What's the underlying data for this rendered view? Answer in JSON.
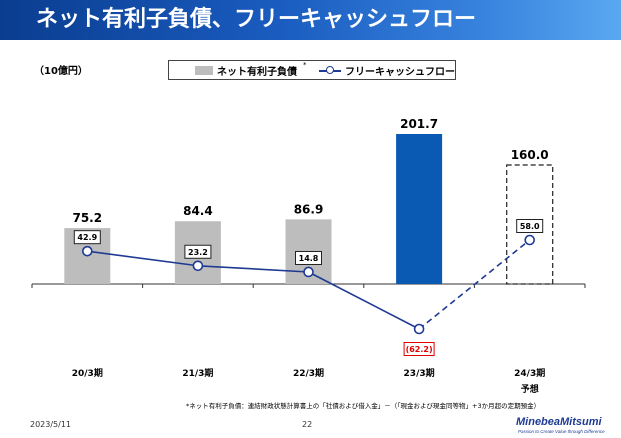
{
  "title": "ネット有利子負債、フリーキャッシュフロー",
  "unit": "（10億円）",
  "legend": {
    "bar": "ネット有利子負債",
    "bar_mark": "*",
    "line": "フリーキャッシュフロー"
  },
  "chart_data": {
    "type": "bar",
    "categories": [
      "20/3期",
      "21/3期",
      "22/3期",
      "23/3期",
      "24/3期"
    ],
    "forecast_label": "予想",
    "series": [
      {
        "name": "ネット有利子負債",
        "kind": "bar",
        "values": [
          75.2,
          84.4,
          86.9,
          201.7,
          160.0
        ],
        "labels": [
          "75.2",
          "84.4",
          "86.9",
          "201.7",
          "160.0"
        ],
        "colors": [
          "#bdbdbd",
          "#bdbdbd",
          "#bdbdbd",
          "#0a5ab4",
          "none"
        ],
        "forecast_index": 4
      },
      {
        "name": "フリーキャッシュフロー",
        "kind": "line",
        "values": [
          42.9,
          23.2,
          14.8,
          -62.2,
          58.0
        ],
        "labels": [
          "42.9",
          "23.2",
          "14.8",
          "(62.2)",
          "58.0"
        ],
        "color": "#1f3a93",
        "negative_label_color": "#e00000",
        "dashed_from_index": 3
      }
    ],
    "bar_scale_max": 201.7,
    "line_scale": [
      -62.2,
      58.0
    ]
  },
  "footnote": "*ネット有利子負債：連結財政状態計算書上の「社債および借入金」－（「現金および現金同等物」+3か月超の定期預金）",
  "footer": {
    "date": "2023/5/11",
    "page": "22",
    "logo": "MinebeaMitsumi",
    "tagline": "Passion to Create Value through Difference"
  }
}
